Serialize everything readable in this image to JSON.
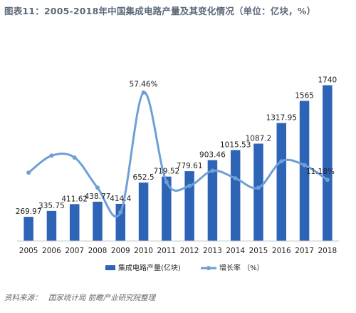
{
  "title": "图表11：2005-2018年中国集成电路产量及其变化情况（单位：亿块，%）",
  "source": {
    "label": "资料来源：",
    "orgs": "国家统计局  前瞻产业研究院整理"
  },
  "colors": {
    "bar": "#2e64b6",
    "line": "#6e9fd6",
    "axis": "#c8c8c8",
    "text": "#222222",
    "title": "#5c6a7a"
  },
  "chart_data": {
    "type": "bar",
    "categories": [
      "2005",
      "2006",
      "2007",
      "2008",
      "2009",
      "2010",
      "2011",
      "2012",
      "2013",
      "2014",
      "2015",
      "2016",
      "2017",
      "2018"
    ],
    "series": [
      {
        "name": "集成电路产量(亿块)",
        "type": "bar",
        "values": [
          269.97,
          335.75,
          411.62,
          438.77,
          414.4,
          652.5,
          719.52,
          779.61,
          903.46,
          1015.53,
          1087.2,
          1317.95,
          1565,
          1740
        ],
        "labels": [
          "269.97",
          "335.75",
          "411.62",
          "438.77",
          "414.4",
          "652.5",
          "719.52",
          "779.61",
          "903.46",
          "1015.53",
          "1087.2",
          "1317.95",
          "1565",
          "1740"
        ]
      },
      {
        "name": "增长率 （%）",
        "type": "line",
        "smooth": true,
        "values": [
          15,
          24,
          23,
          7,
          -6,
          57.46,
          10,
          8,
          16,
          12,
          7,
          21,
          19,
          11.18
        ],
        "labels": [
          "",
          "",
          "",
          "",
          "",
          "57.46%",
          "",
          "",
          "",
          "",
          "",
          "",
          "",
          "11.18%"
        ]
      }
    ],
    "legend": "bottom-center",
    "grid": false
  }
}
